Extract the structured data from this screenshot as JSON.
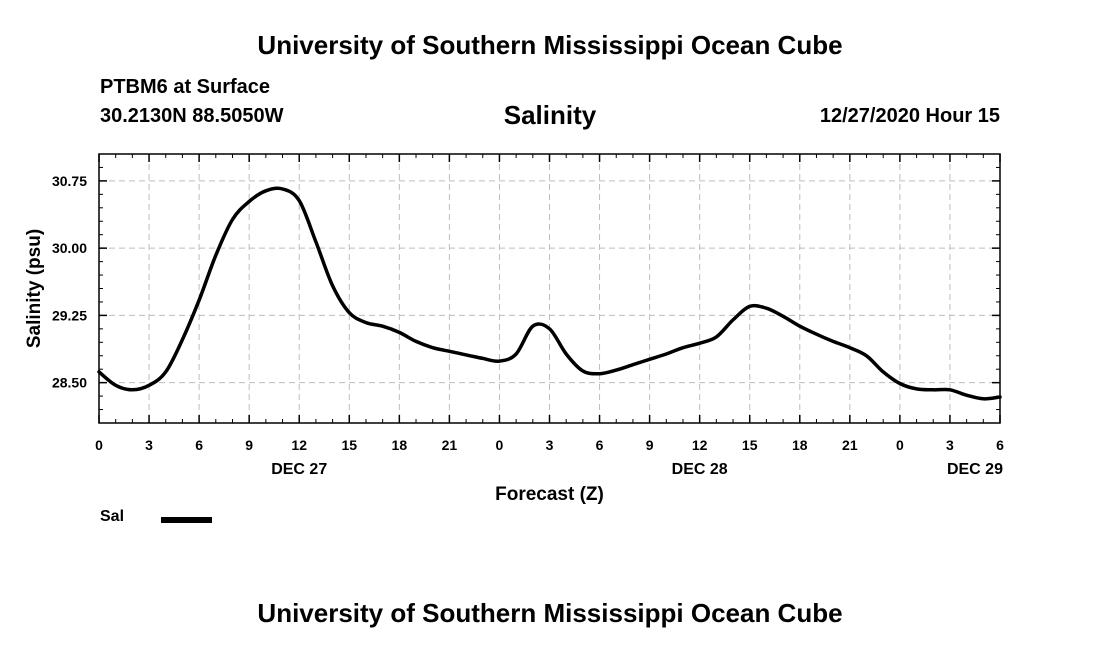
{
  "header": {
    "title": "University of Southern Mississippi Ocean Cube",
    "station": "PTBM6 at Surface",
    "coords": "30.2130N 88.5050W",
    "variable": "Salinity",
    "run_time": "12/27/2020 Hour 15"
  },
  "footer": {
    "title": "University of Southern Mississippi Ocean Cube"
  },
  "legend": {
    "label": "Sal",
    "color": "#000000"
  },
  "chart_data": {
    "type": "line",
    "title": "Salinity",
    "xlabel": "Forecast (Z)",
    "ylabel": "Salinity (psu)",
    "xlim": [
      0,
      54
    ],
    "ylim": [
      28.05,
      31.05
    ],
    "x_ticks": [
      0,
      3,
      6,
      9,
      12,
      15,
      18,
      21,
      24,
      27,
      30,
      33,
      36,
      39,
      42,
      45,
      48,
      51,
      54
    ],
    "x_tick_labels": [
      "0",
      "3",
      "6",
      "9",
      "12",
      "15",
      "18",
      "21",
      "0",
      "3",
      "6",
      "9",
      "12",
      "15",
      "18",
      "21",
      "0",
      "3",
      "6"
    ],
    "y_ticks": [
      28.5,
      29.25,
      30.0,
      30.75
    ],
    "y_tick_labels": [
      "28.50",
      "29.25",
      "30.00",
      "30.75"
    ],
    "day_labels": [
      {
        "x": 12,
        "label": "DEC 27"
      },
      {
        "x": 36,
        "label": "DEC 28"
      },
      {
        "x": 52.5,
        "label": "DEC 29"
      }
    ],
    "grid": true,
    "series": [
      {
        "name": "Sal",
        "color": "#000000",
        "x": [
          0,
          1,
          2,
          3,
          4,
          5,
          6,
          7,
          8,
          9,
          10,
          11,
          12,
          13,
          14,
          15,
          16,
          17,
          18,
          19,
          20,
          21,
          22,
          23,
          24,
          25,
          26,
          27,
          28,
          29,
          30,
          31,
          32,
          33,
          34,
          35,
          36,
          37,
          38,
          39,
          40,
          41,
          42,
          43,
          44,
          45,
          46,
          47,
          48,
          49,
          50,
          51,
          52,
          53,
          54
        ],
        "values": [
          28.62,
          28.47,
          28.42,
          28.47,
          28.62,
          28.98,
          29.42,
          29.92,
          30.32,
          30.52,
          30.64,
          30.66,
          30.53,
          30.07,
          29.58,
          29.28,
          29.17,
          29.13,
          29.06,
          28.96,
          28.89,
          28.85,
          28.81,
          28.77,
          28.74,
          28.82,
          29.13,
          29.1,
          28.82,
          28.63,
          28.6,
          28.64,
          28.7,
          28.76,
          28.82,
          28.89,
          28.94,
          29.01,
          29.2,
          29.35,
          29.33,
          29.24,
          29.13,
          29.04,
          28.96,
          28.89,
          28.8,
          28.62,
          28.49,
          28.43,
          28.42,
          28.42,
          28.36,
          28.32,
          28.34
        ]
      }
    ]
  }
}
